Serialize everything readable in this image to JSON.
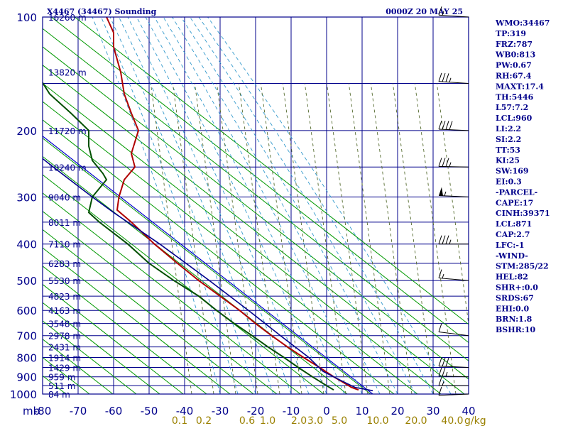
{
  "title": "X4467 (34467) Sounding",
  "datetime": "0000Z 20 MAY 25",
  "pressure_unit": "mb",
  "mixing_ratio_unit": "g/kg",
  "colors": {
    "frame": "#00008b",
    "grid": "#00008b",
    "isotherm": "#0000cd",
    "dry_adiabat": "#009900",
    "moist_adiabat": "#3399cc",
    "mixing_ratio": "#556b2f",
    "temperature": "#b00000",
    "dewpoint": "#005000",
    "parcel": "#00008b",
    "wind_barb": "#000000",
    "mixing_label": "#9a8000"
  },
  "chart_data": {
    "type": "line",
    "title": "X4467 (34467) Sounding",
    "subtitle": "0000Z 20 MAY 25",
    "xlabel": "",
    "ylabel": "mb",
    "y_scale": "log",
    "ylim": [
      1000,
      100
    ],
    "xlim": [
      -80,
      40
    ],
    "pressure_ticks": [
      100,
      200,
      300,
      400,
      500,
      600,
      700,
      800,
      900,
      1000
    ],
    "temperature_ticks": [
      "-80",
      "-70",
      "-60",
      "-50",
      "-40",
      "-30",
      "-20",
      "-10",
      "0",
      "10",
      "20",
      "30",
      "40"
    ],
    "height_labels": [
      {
        "p": 100,
        "text": "16260 m"
      },
      {
        "p": 140,
        "text": "13820 m"
      },
      {
        "p": 200,
        "text": "11720 m"
      },
      {
        "p": 250,
        "text": "10240 m"
      },
      {
        "p": 300,
        "text": "9040 m"
      },
      {
        "p": 350,
        "text": "8011 m"
      },
      {
        "p": 400,
        "text": "7110 m"
      },
      {
        "p": 450,
        "text": "6283 m"
      },
      {
        "p": 500,
        "text": "5530 m"
      },
      {
        "p": 550,
        "text": "4823 m"
      },
      {
        "p": 600,
        "text": "4163 m"
      },
      {
        "p": 650,
        "text": "3548 m"
      },
      {
        "p": 700,
        "text": "2978 m"
      },
      {
        "p": 750,
        "text": "2431 m"
      },
      {
        "p": 800,
        "text": "1914 m"
      },
      {
        "p": 850,
        "text": "1429 m"
      },
      {
        "p": 900,
        "text": "959 m"
      },
      {
        "p": 950,
        "text": "511 m"
      },
      {
        "p": 1000,
        "text": "84 m"
      }
    ],
    "mixing_ratio_labels": [
      "0.1",
      "0.2",
      "0.6",
      "1.0",
      "2.0",
      "3.0",
      "5.0",
      "10.0",
      "20.0",
      "40.0"
    ],
    "series": [
      {
        "name": "Temperature",
        "points": [
          [
            975,
            9
          ],
          [
            960,
            7
          ],
          [
            935,
            5
          ],
          [
            900,
            2
          ],
          [
            850,
            -2
          ],
          [
            800,
            -6.5
          ],
          [
            750,
            -11
          ],
          [
            700,
            -15.5
          ],
          [
            650,
            -20
          ],
          [
            600,
            -24.5
          ],
          [
            550,
            -30
          ],
          [
            500,
            -36
          ],
          [
            450,
            -42
          ],
          [
            400,
            -48.5
          ],
          [
            350,
            -55
          ],
          [
            325,
            -59
          ],
          [
            300,
            -58.5
          ],
          [
            270,
            -57
          ],
          [
            250,
            -54
          ],
          [
            230,
            -55
          ],
          [
            200,
            -53
          ],
          [
            180,
            -55
          ],
          [
            160,
            -57
          ],
          [
            140,
            -58
          ],
          [
            120,
            -60
          ],
          [
            110,
            -60
          ],
          [
            100,
            -62
          ]
        ]
      },
      {
        "name": "Dewpoint",
        "points": [
          [
            975,
            2
          ],
          [
            950,
            0
          ],
          [
            900,
            -4
          ],
          [
            850,
            -8
          ],
          [
            800,
            -12
          ],
          [
            750,
            -16.5
          ],
          [
            700,
            -21
          ],
          [
            650,
            -26
          ],
          [
            600,
            -31
          ],
          [
            550,
            -36
          ],
          [
            500,
            -43
          ],
          [
            450,
            -50
          ],
          [
            400,
            -56
          ],
          [
            350,
            -64
          ],
          [
            330,
            -67
          ],
          [
            300,
            -66
          ],
          [
            270,
            -62
          ],
          [
            260,
            -63
          ],
          [
            240,
            -66
          ],
          [
            220,
            -67
          ],
          [
            200,
            -67
          ],
          [
            180,
            -72
          ],
          [
            160,
            -78
          ],
          [
            130,
            -84
          ],
          [
            110,
            -86
          ],
          [
            100,
            -86
          ]
        ]
      },
      {
        "name": "Parcel",
        "points": [
          [
            980,
            13
          ],
          [
            960,
            8
          ],
          [
            930,
            5
          ],
          [
            871,
            -1
          ],
          [
            800,
            -5
          ],
          [
            700,
            -13
          ],
          [
            600,
            -22
          ],
          [
            500,
            -33
          ],
          [
            400,
            -47
          ],
          [
            330,
            -60
          ],
          [
            300,
            -66
          ],
          [
            250,
            -77
          ],
          [
            200,
            -90
          ]
        ]
      }
    ],
    "winds": [
      {
        "p": 100,
        "dir": 285,
        "spd": 15
      },
      {
        "p": 150,
        "dir": 285,
        "spd": 35
      },
      {
        "p": 200,
        "dir": 280,
        "spd": 40
      },
      {
        "p": 250,
        "dir": 275,
        "spd": 35
      },
      {
        "p": 300,
        "dir": 280,
        "spd": 55
      },
      {
        "p": 400,
        "dir": 270,
        "spd": 35
      },
      {
        "p": 500,
        "dir": 290,
        "spd": 15
      },
      {
        "p": 700,
        "dir": 300,
        "spd": 10
      },
      {
        "p": 850,
        "dir": 280,
        "spd": 30
      },
      {
        "p": 900,
        "dir": 275,
        "spd": 25
      },
      {
        "p": 950,
        "dir": 270,
        "spd": 15
      },
      {
        "p": 1000,
        "dir": 260,
        "spd": 10
      }
    ],
    "grid": true
  },
  "indices": [
    "WMO:34467",
    "TP:319",
    "FRZ:787",
    "WB0:813",
    "PW:0.67",
    "RH:67.4",
    "MAXT:17.4",
    "TH:5446",
    "L57:7.2",
    "LCL:960",
    "LI:2.2",
    "SI:2.2",
    "TT:53",
    "KI:25",
    "SW:169",
    "EI:0.3",
    "-PARCEL-",
    "CAPE:17",
    "CINH:39371",
    "LCL:871",
    "CAP:2.7",
    "LFC:-1",
    "-WIND-",
    "STM:285/22",
    "HEL:82",
    "SHR+:0.0",
    "SRDS:67",
    "EHI:0.0",
    "BRN:1.8",
    "BSHR:10"
  ]
}
